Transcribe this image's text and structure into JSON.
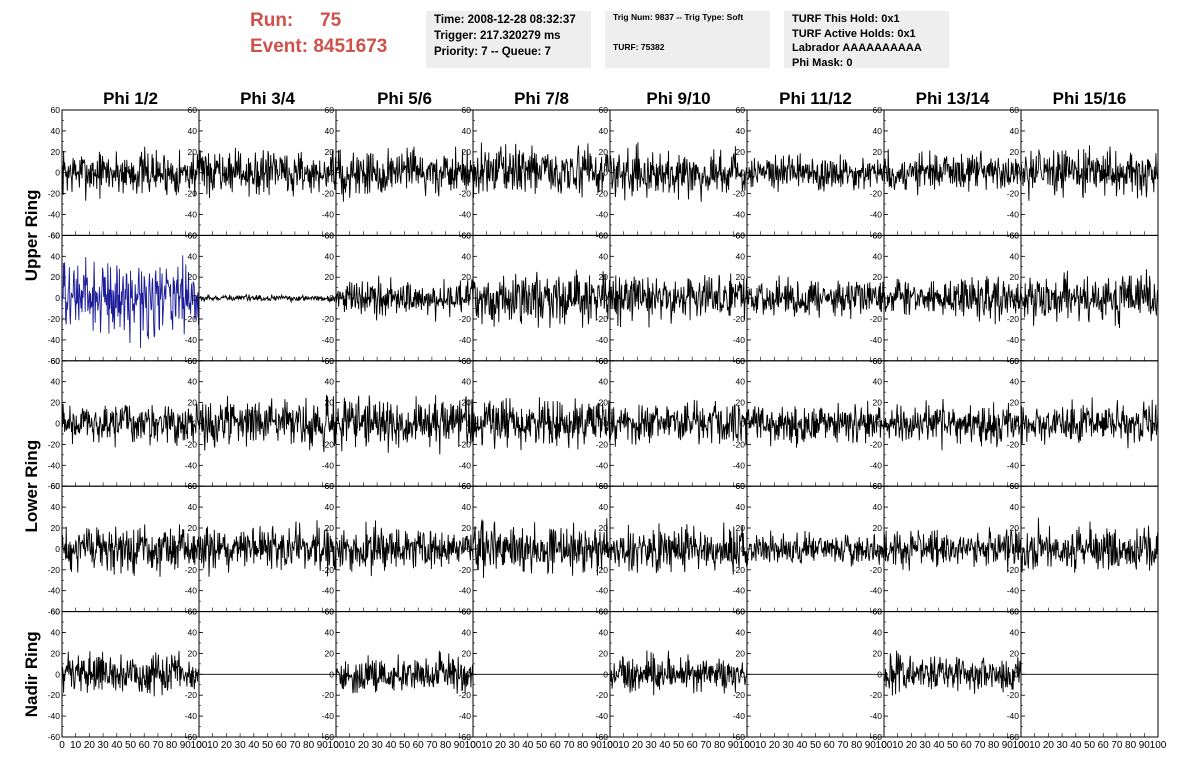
{
  "header": {
    "run_label": "Run:",
    "run_value": "75",
    "event_label": "Event:",
    "event_value": "8451673"
  },
  "time_box": {
    "time": "Time: 2008-12-28 08:32:37",
    "trigger": "Trigger: 217.320279 ms",
    "priority": "Priority: 7 -- Queue: 7"
  },
  "trig_box": {
    "trig": "Trig Num: 9837 -- Trig Type: Soft",
    "turf": "TURF: 75382"
  },
  "turf_box": {
    "this_hold": "TURF This Hold: 0x1",
    "active_holds": "TURF Active Holds: 0x1",
    "labrador": "Labrador AAAAAAAAAA",
    "phi_mask": "Phi Mask: 0"
  },
  "chart_data": {
    "type": "line",
    "columns": [
      "Phi 1/2",
      "Phi 3/4",
      "Phi 5/6",
      "Phi 7/8",
      "Phi 9/10",
      "Phi 11/12",
      "Phi 13/14",
      "Phi 15/16"
    ],
    "ring_labels": [
      "Upper Ring",
      "Lower Ring",
      "Nadir Ring"
    ],
    "xlim": [
      0,
      100
    ],
    "ylim": [
      -60,
      60
    ],
    "x_ticks": [
      0,
      10,
      20,
      30,
      40,
      50,
      60,
      70,
      80,
      90,
      100
    ],
    "y_ticks": [
      -60,
      -40,
      -20,
      0,
      20,
      40,
      60
    ],
    "trace_colors": {
      "normal": "#000000",
      "highlight": "#1c1c9a"
    },
    "panels": [
      [
        {
          "amp": 15,
          "flat": false,
          "color": "normal"
        },
        {
          "amp": 14,
          "flat": false,
          "color": "normal"
        },
        {
          "amp": 16,
          "flat": false,
          "color": "normal"
        },
        {
          "amp": 16,
          "flat": false,
          "color": "normal"
        },
        {
          "amp": 15,
          "flat": false,
          "color": "normal"
        },
        {
          "amp": 12,
          "flat": false,
          "color": "normal"
        },
        {
          "amp": 13,
          "flat": false,
          "color": "normal"
        },
        {
          "amp": 15,
          "flat": false,
          "color": "normal"
        }
      ],
      [
        {
          "amp": 24,
          "flat": false,
          "color": "highlight"
        },
        {
          "amp": 2,
          "flat": false,
          "color": "normal"
        },
        {
          "amp": 12,
          "flat": false,
          "color": "normal"
        },
        {
          "amp": 17,
          "flat": false,
          "color": "normal"
        },
        {
          "amp": 15,
          "flat": false,
          "color": "normal"
        },
        {
          "amp": 12,
          "flat": false,
          "color": "normal"
        },
        {
          "amp": 13,
          "flat": false,
          "color": "normal"
        },
        {
          "amp": 15,
          "flat": false,
          "color": "normal"
        }
      ],
      [
        {
          "amp": 13,
          "flat": false,
          "color": "normal"
        },
        {
          "amp": 15,
          "flat": false,
          "color": "normal"
        },
        {
          "amp": 16,
          "flat": false,
          "color": "normal"
        },
        {
          "amp": 16,
          "flat": false,
          "color": "normal"
        },
        {
          "amp": 14,
          "flat": false,
          "color": "normal"
        },
        {
          "amp": 13,
          "flat": false,
          "color": "normal"
        },
        {
          "amp": 13,
          "flat": false,
          "color": "normal"
        },
        {
          "amp": 13,
          "flat": false,
          "color": "normal"
        }
      ],
      [
        {
          "amp": 15,
          "flat": false,
          "color": "normal"
        },
        {
          "amp": 15,
          "flat": false,
          "color": "normal"
        },
        {
          "amp": 14,
          "flat": false,
          "color": "normal"
        },
        {
          "amp": 17,
          "flat": false,
          "color": "normal"
        },
        {
          "amp": 15,
          "flat": false,
          "color": "normal"
        },
        {
          "amp": 10,
          "flat": false,
          "color": "normal"
        },
        {
          "amp": 12,
          "flat": false,
          "color": "normal"
        },
        {
          "amp": 15,
          "flat": false,
          "color": "normal"
        }
      ],
      [
        {
          "amp": 13,
          "flat": false,
          "color": "normal"
        },
        {
          "amp": 0,
          "flat": true,
          "color": "normal"
        },
        {
          "amp": 12,
          "flat": false,
          "color": "normal"
        },
        {
          "amp": 0,
          "flat": true,
          "color": "normal"
        },
        {
          "amp": 12,
          "flat": false,
          "color": "normal"
        },
        {
          "amp": 0,
          "flat": true,
          "color": "normal"
        },
        {
          "amp": 12,
          "flat": false,
          "color": "normal"
        },
        {
          "amp": 0,
          "flat": true,
          "color": "normal"
        }
      ]
    ]
  }
}
